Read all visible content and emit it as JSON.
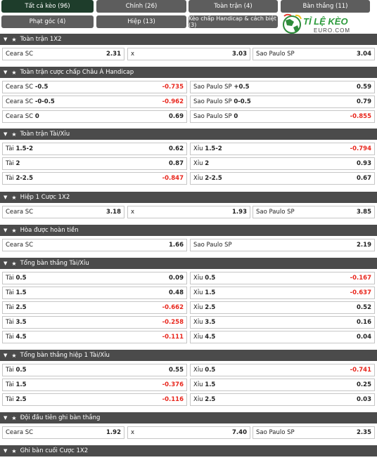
{
  "tabs": [
    {
      "label": "Tất cả kèo (96)",
      "active": true
    },
    {
      "label": "Chính (26)"
    },
    {
      "label": "Toàn trận (4)"
    },
    {
      "label": "Bàn thắng (11)"
    },
    {
      "label": "Phạt góc (4)"
    },
    {
      "label": "Hiệp (13)"
    },
    {
      "label": "Kèo chấp Handicap & cách biệt (3)"
    }
  ],
  "logo": {
    "line1": "TỈ LỆ KÈO",
    "line2": "EURO.COM"
  },
  "sections": [
    {
      "title": "Toàn trận 1X2",
      "rows": [
        [
          {
            "label": "Ceara SC",
            "odd": "2.31"
          },
          {
            "label": "x",
            "odd": "3.03"
          },
          {
            "label": "Sao Paulo SP",
            "odd": "3.04"
          }
        ]
      ]
    },
    {
      "title": "Toàn trận cược chấp Châu Á Handicap",
      "rows": [
        [
          {
            "label": "Ceara SC",
            "line": "-0.5",
            "odd": "-0.735"
          },
          {
            "label": "Sao Paulo SP",
            "line": "+0.5",
            "odd": "0.59"
          }
        ],
        [
          {
            "label": "Ceara SC",
            "line": "-0-0.5",
            "odd": "-0.962"
          },
          {
            "label": "Sao Paulo SP",
            "line": "0-0.5",
            "odd": "0.79"
          }
        ],
        [
          {
            "label": "Ceara SC",
            "line": "0",
            "odd": "0.69"
          },
          {
            "label": "Sao Paulo SP",
            "line": "0",
            "odd": "-0.855"
          }
        ]
      ]
    },
    {
      "title": "Toàn trận Tài/Xỉu",
      "rows": [
        [
          {
            "label": "Tài",
            "line": "1.5-2",
            "odd": "0.62"
          },
          {
            "label": "Xỉu",
            "line": "1.5-2",
            "odd": "-0.794"
          }
        ],
        [
          {
            "label": "Tài",
            "line": "2",
            "odd": "0.87"
          },
          {
            "label": "Xỉu",
            "line": "2",
            "odd": "0.93"
          }
        ],
        [
          {
            "label": "Tài",
            "line": "2-2.5",
            "odd": "-0.847"
          },
          {
            "label": "Xỉu",
            "line": "2-2.5",
            "odd": "0.67"
          }
        ]
      ]
    },
    {
      "title": "Hiệp 1 Cược 1X2",
      "rows": [
        [
          {
            "label": "Ceara SC",
            "odd": "3.18"
          },
          {
            "label": "x",
            "odd": "1.93"
          },
          {
            "label": "Sao Paulo SP",
            "odd": "3.85"
          }
        ]
      ]
    },
    {
      "title": "Hòa được hoàn tiền",
      "rows": [
        [
          {
            "label": "Ceara SC",
            "odd": "1.66"
          },
          {
            "label": "Sao Paulo SP",
            "odd": "2.19"
          }
        ]
      ]
    },
    {
      "title": "Tổng bàn thắng Tài/Xỉu",
      "rows": [
        [
          {
            "label": "Tài",
            "line": "0.5",
            "odd": "0.09"
          },
          {
            "label": "Xỉu",
            "line": "0.5",
            "odd": "-0.167"
          }
        ],
        [
          {
            "label": "Tài",
            "line": "1.5",
            "odd": "0.48"
          },
          {
            "label": "Xỉu",
            "line": "1.5",
            "odd": "-0.637"
          }
        ],
        [
          {
            "label": "Tài",
            "line": "2.5",
            "odd": "-0.662"
          },
          {
            "label": "Xỉu",
            "line": "2.5",
            "odd": "0.52"
          }
        ],
        [
          {
            "label": "Tài",
            "line": "3.5",
            "odd": "-0.258"
          },
          {
            "label": "Xỉu",
            "line": "3.5",
            "odd": "0.16"
          }
        ],
        [
          {
            "label": "Tài",
            "line": "4.5",
            "odd": "-0.111"
          },
          {
            "label": "Xỉu",
            "line": "4.5",
            "odd": "0.04"
          }
        ]
      ]
    },
    {
      "title": "Tổng bàn thắng hiệp 1 Tài/Xỉu",
      "rows": [
        [
          {
            "label": "Tài",
            "line": "0.5",
            "odd": "0.55"
          },
          {
            "label": "Xỉu",
            "line": "0.5",
            "odd": "-0.741"
          }
        ],
        [
          {
            "label": "Tài",
            "line": "1.5",
            "odd": "-0.376"
          },
          {
            "label": "Xỉu",
            "line": "1.5",
            "odd": "0.25"
          }
        ],
        [
          {
            "label": "Tài",
            "line": "2.5",
            "odd": "-0.116"
          },
          {
            "label": "Xỉu",
            "line": "2.5",
            "odd": "0.03"
          }
        ]
      ]
    },
    {
      "title": "Đội đầu tiên ghi bàn thắng",
      "rows": [
        [
          {
            "label": "Ceara SC",
            "odd": "1.92"
          },
          {
            "label": "x",
            "odd": "7.40"
          },
          {
            "label": "Sao Paulo SP",
            "odd": "2.35"
          }
        ]
      ]
    },
    {
      "title": "Ghi bàn cuối Cược 1X2",
      "rows": []
    }
  ],
  "colors": {
    "tab_bg": "#5d5d5d",
    "tab_active": "#1e3d2b",
    "header_bg": "#4b4b4b",
    "negative": "#e8261c"
  }
}
